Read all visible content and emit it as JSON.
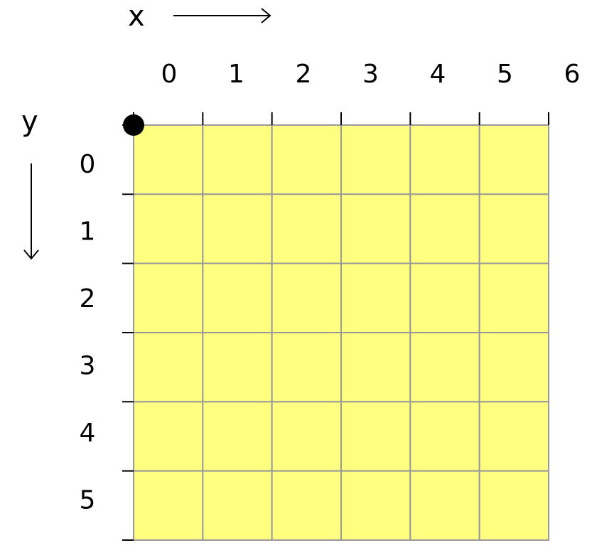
{
  "axes": {
    "x_label": "x",
    "y_label": "y"
  },
  "grid": {
    "columns": 6,
    "rows": 6,
    "x_ticks": [
      "0",
      "1",
      "2",
      "3",
      "4",
      "5",
      "6"
    ],
    "y_ticks": [
      "0",
      "1",
      "2",
      "3",
      "4",
      "5"
    ],
    "origin_marker": [
      0,
      0
    ]
  },
  "colors": {
    "cell_fill": "#ffff80",
    "grid_line": "#999999",
    "axis_line": "#000000",
    "origin_dot": "#000000"
  }
}
